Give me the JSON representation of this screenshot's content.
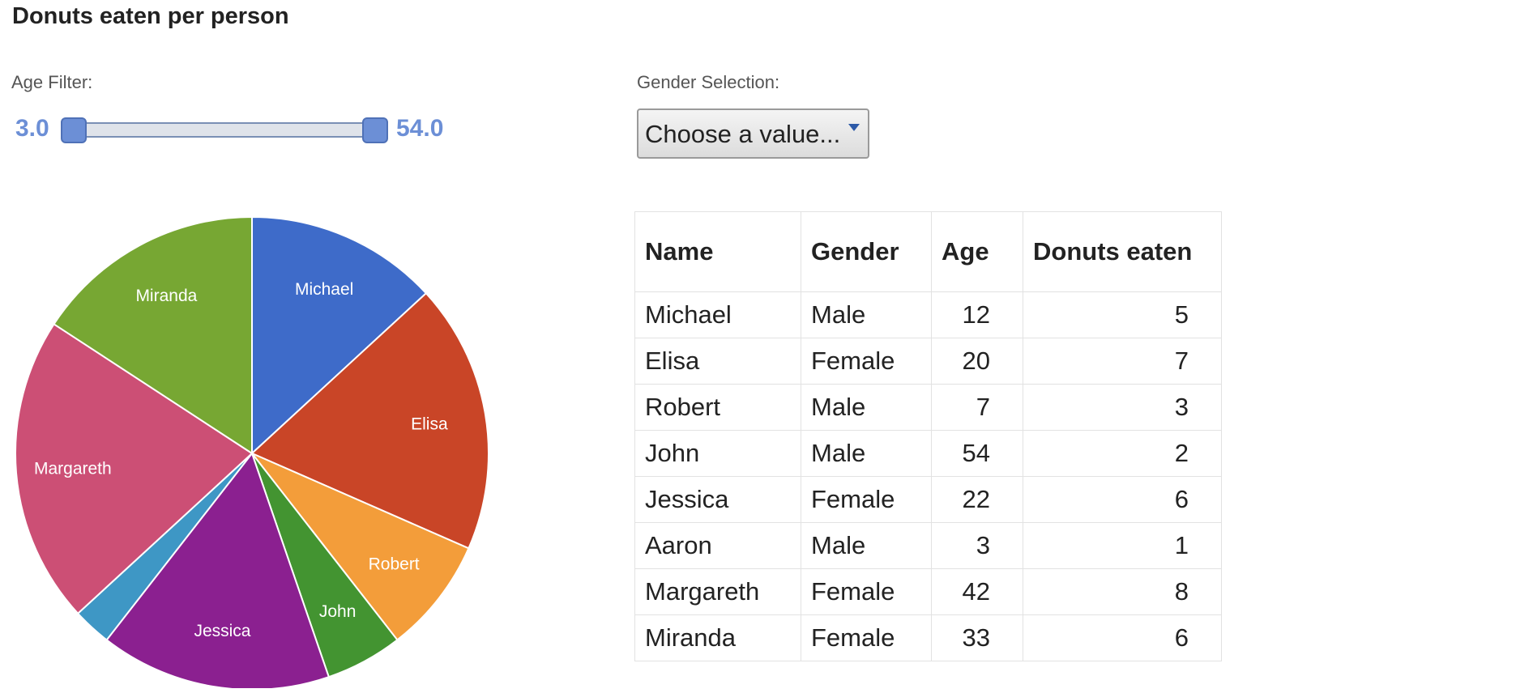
{
  "title": "Donuts eaten per person",
  "controls": {
    "age_filter": {
      "label": "Age Filter:",
      "min_label": "3.0",
      "max_label": "54.0",
      "low": 3,
      "high": 54,
      "range": [
        3,
        54
      ]
    },
    "gender_selection": {
      "label": "Gender Selection:",
      "value": "Choose a value..."
    }
  },
  "table": {
    "headers": [
      "Name",
      "Gender",
      "Age",
      "Donuts eaten"
    ],
    "rows": [
      [
        "Michael",
        "Male",
        "12",
        "5"
      ],
      [
        "Elisa",
        "Female",
        "20",
        "7"
      ],
      [
        "Robert",
        "Male",
        "7",
        "3"
      ],
      [
        "John",
        "Male",
        "54",
        "2"
      ],
      [
        "Jessica",
        "Female",
        "22",
        "6"
      ],
      [
        "Aaron",
        "Male",
        "3",
        "1"
      ],
      [
        "Margareth",
        "Female",
        "42",
        "8"
      ],
      [
        "Miranda",
        "Female",
        "33",
        "6"
      ]
    ]
  },
  "chart_data": {
    "type": "pie",
    "categories": [
      "Michael",
      "Elisa",
      "Robert",
      "John",
      "Jessica",
      "Aaron",
      "Margareth",
      "Miranda"
    ],
    "values": [
      5,
      7,
      3,
      2,
      6,
      1,
      8,
      6
    ],
    "show_slice_labels": [
      true,
      true,
      true,
      true,
      true,
      false,
      true,
      true
    ],
    "colors": [
      "#3e6bc9",
      "#c94527",
      "#f39d3a",
      "#439431",
      "#8b2090",
      "#3e97c5",
      "#cc4f75",
      "#77a733"
    ]
  }
}
